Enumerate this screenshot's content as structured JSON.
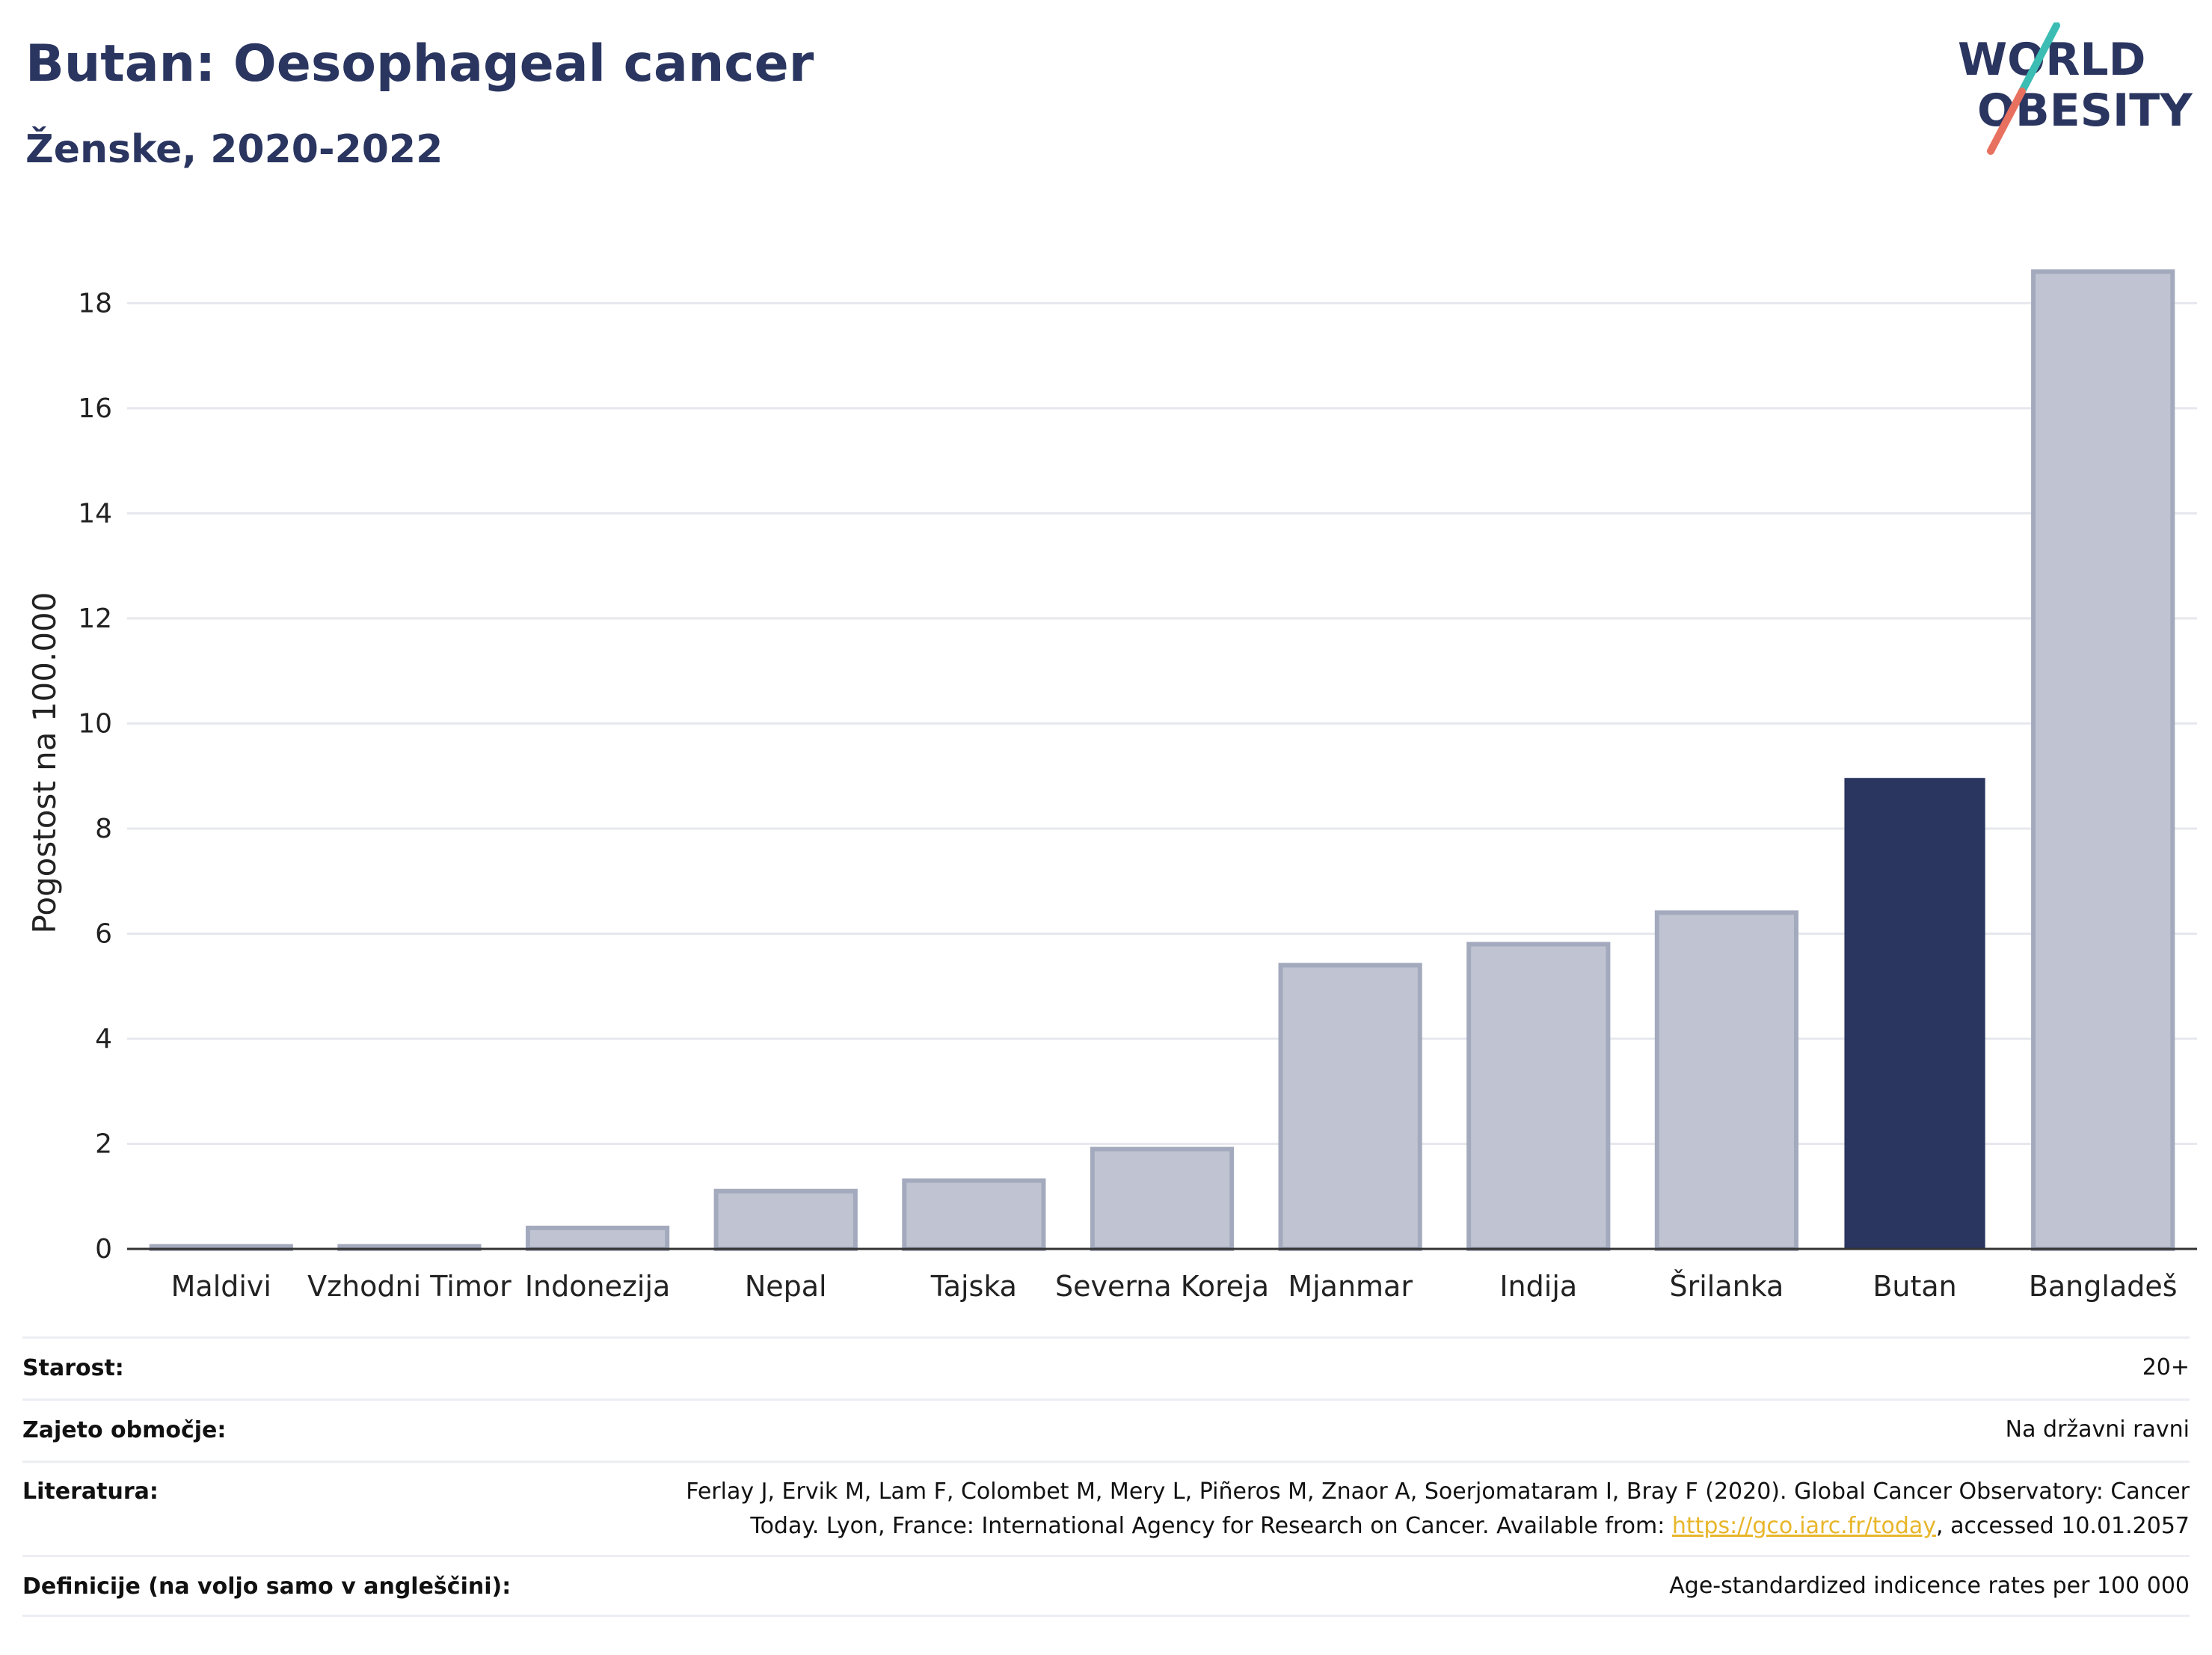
{
  "header": {
    "title": "Butan: Oesophageal cancer",
    "subtitle": "Ženske, 2020-2022"
  },
  "logo": {
    "line1": "WORLD",
    "line2": "OBESITY",
    "text_color": "#2a3560",
    "slash_colors": [
      "#3bbdb4",
      "#e8705f"
    ]
  },
  "chart_data": {
    "type": "bar",
    "title": "",
    "xlabel": "",
    "ylabel": "Pogostost na 100.000",
    "ylim": [
      0,
      19.5
    ],
    "yticks": [
      0,
      2,
      4,
      6,
      8,
      10,
      12,
      14,
      16,
      18
    ],
    "grid": true,
    "categories": [
      "Maldivi",
      "Vzhodni Timor",
      "Indonezija",
      "Nepal",
      "Tajska",
      "Severna Koreja",
      "Mjanmar",
      "Indija",
      "Šrilanka",
      "Butan",
      "Bangladeš"
    ],
    "values": [
      0.05,
      0.05,
      0.4,
      1.1,
      1.3,
      1.9,
      5.4,
      5.8,
      6.4,
      8.95,
      18.6
    ],
    "highlight": "Butan",
    "colors": {
      "default": "#c0c4d2",
      "default_edge": "#a4aabd",
      "highlight": "#2a3560"
    }
  },
  "meta": {
    "rows": [
      {
        "label": "Starost:",
        "value": "20+"
      },
      {
        "label": "Zajeto območje:",
        "value": "Na državni ravni"
      },
      {
        "label": "Literatura:",
        "value_line1": "Ferlay J, Ervik M, Lam F, Colombet M, Mery L, Piñeros M, Znaor A, Soerjomataram I, Bray F (2020). Global Cancer Observatory: Cancer",
        "value_line2_before": "Today. Lyon, France: International Agency for Research on Cancer. Available from: ",
        "link": "https://gco.iarc.fr/today",
        "value_line2_after": ", accessed 10.01.2057"
      },
      {
        "label": "Definicije (na voljo samo v angleščini):",
        "value": "Age-standardized indicence rates per 100 000"
      }
    ]
  }
}
